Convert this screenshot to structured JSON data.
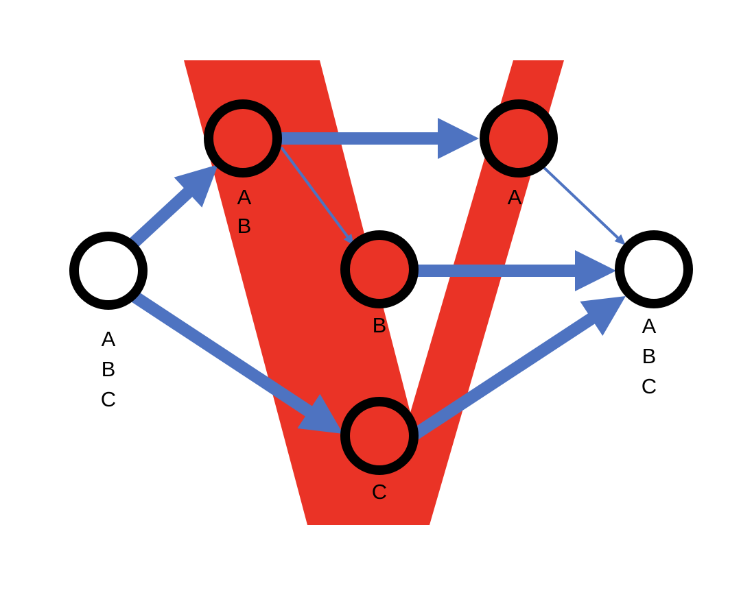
{
  "colors": {
    "background": "#ffffff",
    "v_shape": "#ea3326",
    "edge": "#4e73c1",
    "node_outline": "#000000",
    "node_fill_plain": "#ffffff",
    "node_fill_highlight": "#ea3326"
  },
  "nodes": [
    {
      "id": "source",
      "highlighted": false,
      "labels": [
        "A",
        "B",
        "C"
      ]
    },
    {
      "id": "top-left",
      "highlighted": true,
      "labels": [
        "A",
        "B"
      ]
    },
    {
      "id": "top-right",
      "highlighted": true,
      "labels": [
        "A"
      ]
    },
    {
      "id": "middle",
      "highlighted": true,
      "labels": [
        "B"
      ]
    },
    {
      "id": "bottom",
      "highlighted": true,
      "labels": [
        "C"
      ]
    },
    {
      "id": "sink",
      "highlighted": false,
      "labels": [
        "A",
        "B",
        "C"
      ]
    }
  ],
  "edges": [
    {
      "from": "source",
      "to": "top-left",
      "weight": "thick"
    },
    {
      "from": "source",
      "to": "bottom",
      "weight": "thick"
    },
    {
      "from": "top-left",
      "to": "top-right",
      "weight": "thick"
    },
    {
      "from": "top-left",
      "to": "middle",
      "weight": "thin"
    },
    {
      "from": "top-right",
      "to": "sink",
      "weight": "thin"
    },
    {
      "from": "middle",
      "to": "sink",
      "weight": "thick"
    },
    {
      "from": "bottom",
      "to": "sink",
      "weight": "thick"
    }
  ]
}
